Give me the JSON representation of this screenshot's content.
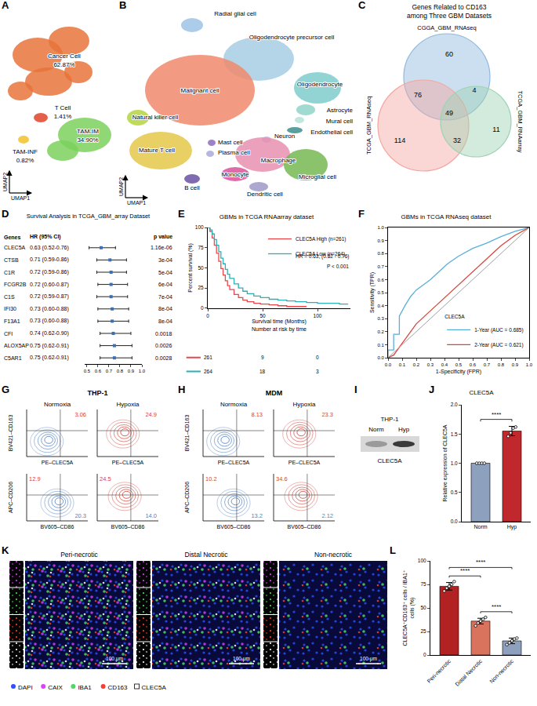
{
  "chart_data": [
    {
      "panel": "D",
      "type": "forest",
      "title": "Survival Analysis in TCGA_GBM_array Dataset",
      "columns": [
        "Genes",
        "HR (95% CI)",
        "p value"
      ],
      "categories": [
        "CLEC5A",
        "CTSB",
        "C1R",
        "FCGR2B",
        "C1S",
        "IFI30",
        "F13A1",
        "CFI",
        "ALOX5AP",
        "C5AR1"
      ],
      "values": [
        0.63,
        0.71,
        0.72,
        0.72,
        0.72,
        0.73,
        0.73,
        0.74,
        0.75,
        0.75
      ],
      "lower": [
        0.52,
        0.59,
        0.59,
        0.6,
        0.59,
        0.6,
        0.6,
        0.62,
        0.62,
        0.62
      ],
      "upper": [
        0.76,
        0.86,
        0.86,
        0.87,
        0.87,
        0.88,
        0.88,
        0.9,
        0.91,
        0.91
      ],
      "value_labels": [
        "0.63 (0.52-0.76)",
        "0.71 (0.59-0.86)",
        "0.72 (0.59-0.86)",
        "0.72 (0.60-0.87)",
        "0.72 (0.59-0.87)",
        "0.73 (0.60-0.88)",
        "0.73 (0.60-0.88)",
        "0.74 (0.62-0.90)",
        "0.75 (0.62-0.91)",
        "0.75 (0.62-0.91)"
      ],
      "p_values": [
        "1.16e-06",
        "3e-04",
        "5e-04",
        "6e-04",
        "7e-04",
        "8e-04",
        "8e-04",
        "0.0018",
        "0.0026",
        "0.0028"
      ],
      "xlim": [
        0.48,
        1.0
      ],
      "xticks": [
        0.5,
        0.6,
        0.7,
        0.8,
        0.9,
        {
          "value": 1,
          "label": "1.0"
        }
      ],
      "color": "#3B6FB6",
      "grid": false
    },
    {
      "panel": "E",
      "type": "line",
      "title": "GBMs in TCGA RNAarray dataset",
      "x_label": "Survival time (Months)",
      "y_label": "Percent survival (%)",
      "xlim": [
        0,
        130
      ],
      "xticks": [
        0,
        50,
        100
      ],
      "ylim": [
        0,
        100
      ],
      "yticks": [
        0,
        25,
        50,
        75,
        100
      ],
      "line_style": "step",
      "legend": "top right",
      "grid": false,
      "annotations": [
        "HR = 0.63, (0.52 - 0.76)",
        "P < 0.001"
      ],
      "risk_table": {
        "title": "Number at risk by time",
        "times": [
          0,
          50,
          100
        ]
      },
      "series": [
        {
          "name": "CLEC5A High (n=261)",
          "color": "#E8474C",
          "x": [
            0,
            2,
            4,
            6,
            8,
            10,
            12,
            14,
            16,
            18,
            20,
            24,
            28,
            32,
            36,
            42,
            48,
            56,
            64,
            72,
            80,
            90
          ],
          "values": [
            100,
            95,
            87,
            78,
            68,
            58,
            49,
            41,
            34,
            28,
            23,
            17,
            13,
            10,
            8,
            6,
            5,
            4,
            3,
            2,
            2,
            2
          ],
          "at_risk": [
            261,
            9,
            0
          ]
        },
        {
          "name": "CLEC5A Low (n=264)",
          "color": "#2BB0B5",
          "x": [
            0,
            2,
            4,
            6,
            8,
            10,
            12,
            14,
            16,
            18,
            20,
            24,
            28,
            32,
            36,
            42,
            48,
            56,
            64,
            72,
            80,
            90,
            100,
            110,
            120,
            128
          ],
          "values": [
            100,
            97,
            92,
            85,
            78,
            70,
            62,
            55,
            48,
            42,
            37,
            30,
            25,
            21,
            18,
            15,
            13,
            11,
            10,
            9,
            8,
            7,
            6,
            6,
            5,
            5
          ],
          "at_risk": [
            264,
            18,
            3
          ]
        }
      ]
    },
    {
      "panel": "F",
      "type": "line",
      "title": "GBMs in TCGA RNAseq dataset",
      "x_label": "1-Specificity (FPR)",
      "y_label": "Sensitivity (TPR)",
      "xlim": [
        0,
        1
      ],
      "ylim": [
        0,
        1
      ],
      "xticks": [
        {
          "value": 0,
          "label": "0.0"
        },
        0.1,
        0.2,
        0.3,
        0.4,
        0.5,
        0.6,
        0.7,
        0.8,
        0.9,
        {
          "value": 1,
          "label": "1.0"
        }
      ],
      "yticks": [
        {
          "value": 0,
          "label": "0.0"
        },
        0.1,
        0.2,
        0.3,
        0.4,
        0.5,
        0.6,
        0.7,
        0.8,
        0.9,
        {
          "value": 1,
          "label": "1.0"
        }
      ],
      "legend": "bottom right",
      "legend_title": "CLEC5A",
      "grid": false,
      "series": [
        {
          "name": "1-Year (AUC = 0.685)",
          "color": "#5AAFD8",
          "x": [
            0,
            0,
            0.04,
            0.04,
            0.08,
            0.08,
            0.12,
            0.16,
            0.2,
            0.25,
            0.3,
            0.36,
            0.42,
            0.5,
            0.6,
            0.7,
            0.8,
            0.9,
            1
          ],
          "values": [
            0,
            0.06,
            0.06,
            0.18,
            0.18,
            0.32,
            0.4,
            0.47,
            0.52,
            0.56,
            0.6,
            0.66,
            0.72,
            0.78,
            0.84,
            0.88,
            0.93,
            0.97,
            1
          ]
        },
        {
          "name": "2-Year (AUC = 0.621)",
          "color": "#D9453B",
          "x": [
            0,
            0.04,
            0.08,
            0.12,
            0.16,
            0.2,
            0.26,
            0.32,
            0.4,
            0.48,
            0.56,
            0.64,
            0.72,
            0.8,
            0.9,
            1
          ],
          "values": [
            0,
            0.02,
            0.08,
            0.14,
            0.2,
            0.26,
            0.32,
            0.38,
            0.46,
            0.54,
            0.62,
            0.7,
            0.78,
            0.86,
            0.94,
            1
          ]
        },
        {
          "color": "#A0A0A0",
          "x": [
            0,
            1
          ],
          "values": [
            0,
            1
          ]
        }
      ]
    },
    {
      "panel": "J",
      "type": "bar",
      "title": "CLEC5A",
      "y_label": "Relative expression of CLEC5A",
      "categories": [
        "Norm",
        "Hyp"
      ],
      "values": [
        1.0,
        1.55
      ],
      "errors": [
        0.0,
        0.08
      ],
      "points": [
        [
          1,
          1,
          1,
          1
        ],
        [
          1.46,
          1.52,
          1.6,
          1.62
        ]
      ],
      "colors": [
        "#8DA0BE",
        "#C0282D"
      ],
      "ylim": [
        0,
        2
      ],
      "yticks": [
        {
          "value": 0,
          "label": "0.0"
        },
        0.5,
        {
          "value": 1,
          "label": "1.0"
        },
        1.5,
        {
          "value": 2,
          "label": "2.0"
        }
      ],
      "grid": false,
      "significance": [
        {
          "groups": [
            "Norm",
            "Hyp"
          ],
          "label": "****"
        }
      ]
    },
    {
      "panel": "L",
      "type": "bar",
      "y_label": "CLEC5A⁺CD163⁺ cells / IBA1⁺ cells (%)",
      "categories": [
        "Peri-necrotic",
        "Distal Necrotic",
        "Non-necrotic"
      ],
      "values": [
        73,
        36,
        15
      ],
      "errors": [
        4,
        3,
        3
      ],
      "points": [
        [
          68,
          71,
          73,
          75,
          78
        ],
        [
          31,
          34,
          36,
          38,
          40
        ],
        [
          11,
          13,
          15,
          17,
          18
        ]
      ],
      "colors": [
        "#B22222",
        "#D9735E",
        "#8DA0BE"
      ],
      "ylim": [
        0,
        100
      ],
      "yticks": [
        0,
        25,
        50,
        75,
        100
      ],
      "grid": false,
      "significance": [
        {
          "groups": [
            "Peri-necrotic",
            "Distal Necrotic"
          ],
          "label": "****"
        },
        {
          "groups": [
            "Distal Necrotic",
            "Non-necrotic"
          ],
          "label": "****"
        },
        {
          "groups": [
            "Peri-necrotic",
            "Non-necrotic"
          ],
          "label": "****"
        }
      ]
    }
  ],
  "diagrams": [
    {
      "panel": "A",
      "type": "umap",
      "x_label": "UMAP1",
      "y_label": "UMAP2",
      "clusters": [
        {
          "label": "Cancer Cell",
          "percent": "62.87%",
          "color": "#E8743B"
        },
        {
          "label": "T Cell",
          "percent": "1.41%",
          "color": "#E0442B"
        },
        {
          "label": "TAM-INF",
          "percent": "0.82%",
          "color": "#F2C12E"
        },
        {
          "label": "TAM-IM",
          "percent": "34.90%",
          "color": "#7BD15D"
        }
      ]
    },
    {
      "panel": "B",
      "type": "umap",
      "x_label": "UMAP1",
      "y_label": "UMAP2",
      "clusters": [
        {
          "label": "Radial glial cell",
          "color": "#9DC3E6"
        },
        {
          "label": "Oligodendrocyte precursor cell",
          "color": "#A6CEE3"
        },
        {
          "label": "Oligodendrocyte",
          "color": "#7FCDCD"
        },
        {
          "label": "Astrocyte",
          "color": "#8FD3C8"
        },
        {
          "label": "Mural cell",
          "color": "#B6E3D9"
        },
        {
          "label": "Endothelial cell",
          "color": "#3E8E8E"
        },
        {
          "label": "Malignant cell",
          "color": "#F08A6C"
        },
        {
          "label": "Natural killer cell",
          "color": "#B5D33D"
        },
        {
          "label": "Neuron",
          "color": "#C7B2D8"
        },
        {
          "label": "Mature T cell",
          "color": "#E5C84A"
        },
        {
          "label": "Mast cell",
          "color": "#8E6BBF"
        },
        {
          "label": "Plasma cell",
          "color": "#A9A9D9"
        },
        {
          "label": "Macrophage",
          "color": "#E88FB0"
        },
        {
          "label": "Microglial cell",
          "color": "#76B852"
        },
        {
          "label": "Monocyte",
          "color": "#D9529A"
        },
        {
          "label": "B cell",
          "color": "#6A51A3"
        },
        {
          "label": "Dendritic cell",
          "color": "#9E9AC8"
        }
      ]
    },
    {
      "panel": "C",
      "type": "venn",
      "title": "Genes Related to CD163 among Three GBM Datasets",
      "sets": [
        {
          "name": "CGGA_GBM_RNAseq",
          "color": "#8FB8DE"
        },
        {
          "name": "TCGA_GBM_RNAseq",
          "color": "#F4A6A0"
        },
        {
          "name": "TCGA_GBM_RNAarray",
          "color": "#9ED3B3"
        }
      ],
      "regions": [
        {
          "sets": [
            "CGGA_GBM_RNAseq"
          ],
          "count": 60
        },
        {
          "sets": [
            "TCGA_GBM_RNAseq"
          ],
          "count": 114
        },
        {
          "sets": [
            "TCGA_GBM_RNAarray"
          ],
          "count": 11
        },
        {
          "sets": [
            "CGGA_GBM_RNAseq",
            "TCGA_GBM_RNAseq"
          ],
          "count": 76
        },
        {
          "sets": [
            "CGGA_GBM_RNAseq",
            "TCGA_GBM_RNAarray"
          ],
          "count": 4
        },
        {
          "sets": [
            "TCGA_GBM_RNAseq",
            "TCGA_GBM_RNAarray"
          ],
          "count": 32
        },
        {
          "sets": [
            "CGGA_GBM_RNAseq",
            "TCGA_GBM_RNAseq",
            "TCGA_GBM_RNAarray"
          ],
          "count": 49
        }
      ]
    },
    {
      "panel": "G",
      "type": "flow_cytometry",
      "title": "THP-1",
      "conditions": [
        {
          "name": "Normoxia",
          "color": "#4F7FC0"
        },
        {
          "name": "Hypoxia",
          "color": "#D0453B"
        }
      ],
      "rows": [
        {
          "x_label": "PE–CLEC5A",
          "y_label": "BV421–CD163",
          "quadrants": [
            {
              "position": "upper right",
              "color": "#D0453B",
              "values": [
                "3.06",
                "24.9"
              ]
            }
          ]
        },
        {
          "x_label": "BV605–CD86",
          "y_label": "APC–CD206",
          "quadrants": [
            {
              "position": "upper left",
              "color": "#D0453B",
              "values": [
                "12.9",
                "24.5"
              ]
            },
            {
              "position": "lower right",
              "color": "#4F7FC0",
              "values": [
                "20.3",
                "14.0"
              ]
            }
          ]
        }
      ]
    },
    {
      "panel": "H",
      "type": "flow_cytometry",
      "title": "MDM",
      "conditions": [
        {
          "name": "Normoxia",
          "color": "#4F7FC0"
        },
        {
          "name": "Hypoxia",
          "color": "#D0453B"
        }
      ],
      "rows": [
        {
          "x_label": "PE–CLEC5A",
          "y_label": "BV421–CD163",
          "quadrants": [
            {
              "position": "upper right",
              "color": "#D0453B",
              "values": [
                "8.13",
                "23.3"
              ]
            }
          ]
        },
        {
          "x_label": "BV605–CD86",
          "y_label": "APC–CD206",
          "quadrants": [
            {
              "position": "upper left",
              "color": "#D0453B",
              "values": [
                "10.2",
                "34.6"
              ]
            },
            {
              "position": "lower right",
              "color": "#4F7FC0",
              "values": [
                "13.2",
                "2.12"
              ]
            }
          ]
        }
      ]
    },
    {
      "panel": "I",
      "type": "blot",
      "title": "THP-1",
      "protein": "CLEC5A",
      "lanes": [
        {
          "name": "Norm",
          "color": "#9A9A9A"
        },
        {
          "name": "Hyp",
          "color": "#3A3A3A"
        }
      ]
    },
    {
      "panel": "K",
      "type": "images",
      "images": [
        "Peri-necrotic",
        "Distal Necrotic",
        "Non-necrotic"
      ],
      "scale_bar": "100 μm",
      "channels": [
        {
          "name": "DAPI",
          "color": "#3050FF",
          "marker": "circle"
        },
        {
          "name": "CAIX",
          "color": "#E040FB",
          "marker": "circle"
        },
        {
          "name": "IBA1",
          "color": "#4CD964",
          "marker": "circle"
        },
        {
          "name": "CD163",
          "color": "#FF3B30",
          "marker": "circle"
        },
        {
          "name": "CLEC5A",
          "color": "#FFFFFF",
          "marker": "square"
        }
      ]
    }
  ]
}
